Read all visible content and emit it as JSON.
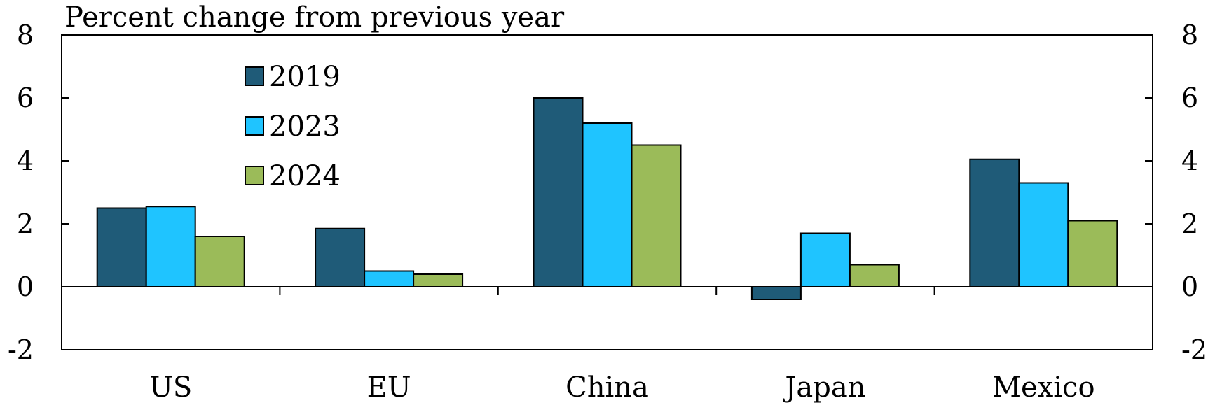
{
  "chart_data": {
    "type": "bar",
    "ylabel": "Percent change from previous year",
    "ylim": [
      -2,
      8
    ],
    "yticks": [
      -2,
      0,
      2,
      4,
      6,
      8
    ],
    "grid": false,
    "legend_position": "top-left",
    "categories": [
      "US",
      "EU",
      "China",
      "Japan",
      "Mexico"
    ],
    "series": [
      {
        "name": "2019",
        "color": "#1f5b78",
        "values": [
          2.5,
          1.85,
          6.0,
          -0.4,
          4.05
        ]
      },
      {
        "name": "2023",
        "color": "#1fc4ff",
        "values": [
          2.55,
          0.5,
          5.2,
          1.7,
          3.3
        ]
      },
      {
        "name": "2024",
        "color": "#9bbb59",
        "values": [
          1.6,
          0.4,
          4.5,
          0.7,
          2.1
        ]
      }
    ]
  }
}
